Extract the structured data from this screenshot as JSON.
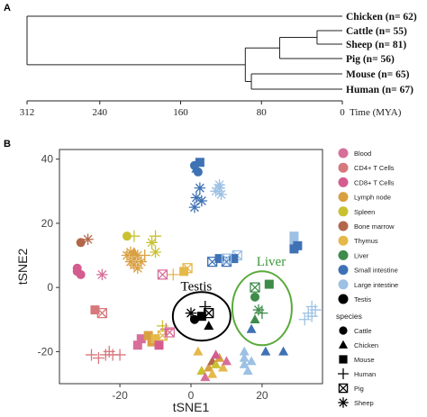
{
  "chart_data": [
    {
      "type": "dendrogram",
      "panel_label": "A",
      "leaves": [
        {
          "name": "Chicken (n= 62)",
          "divergence_mya": 312
        },
        {
          "name": "Cattle (n= 55)",
          "divergence_mya": 25
        },
        {
          "name": "Sheep (n= 81)",
          "divergence_mya": 25
        },
        {
          "name": "Pig (n= 56)",
          "divergence_mya": 62
        },
        {
          "name": "Mouse (n= 65)",
          "divergence_mya": 90
        },
        {
          "name": "Human (n= 67)",
          "divergence_mya": 90
        }
      ],
      "merges": [
        {
          "children": [
            "Cattle",
            "Sheep"
          ],
          "mya": 25
        },
        {
          "children": [
            "Cattle+Sheep",
            "Pig"
          ],
          "mya": 62
        },
        {
          "children": [
            "Mouse",
            "Human"
          ],
          "mya": 90
        },
        {
          "children": [
            "Cattle+Sheep+Pig",
            "Mouse+Human"
          ],
          "mya": 96
        },
        {
          "children": [
            "Chicken",
            "Mammals"
          ],
          "mya": 312
        }
      ],
      "x_ticks": [
        "312",
        "240",
        "160",
        "80",
        "0"
      ],
      "x_tick_values": [
        312,
        240,
        160,
        80,
        0
      ],
      "xlabel": "Time (MYA)"
    },
    {
      "type": "scatter",
      "panel_label": "B",
      "xlabel": "tSNE1",
      "ylabel": "tSNE2",
      "xlim": [
        -37,
        37
      ],
      "ylim": [
        -30,
        43
      ],
      "x_ticks": [
        "-20",
        "0",
        "20"
      ],
      "x_tick_values": [
        -20,
        0,
        20
      ],
      "y_ticks": [
        "40",
        "20",
        "0",
        "-20"
      ],
      "y_tick_values": [
        40,
        20,
        0,
        -20
      ],
      "annotations": [
        {
          "text": "Testis",
          "x": 2,
          "y": -8,
          "color": "#000000"
        },
        {
          "text": "Liver",
          "x": 19,
          "y": -5,
          "color": "#3a9a3a"
        }
      ],
      "tissue_legend": [
        {
          "label": "Blood",
          "color": "#d86f9a"
        },
        {
          "label": "CD4+ T Cells",
          "color": "#d6787c"
        },
        {
          "label": "CD8+ T Cells",
          "color": "#d55c8f"
        },
        {
          "label": "Lymph node",
          "color": "#d9a042"
        },
        {
          "label": "Spleen",
          "color": "#c9c131"
        },
        {
          "label": "Bone marrow",
          "color": "#b2674a"
        },
        {
          "label": "Thymus",
          "color": "#e5b84a"
        },
        {
          "label": "Liver",
          "color": "#3e8b4a"
        },
        {
          "label": "Small intestine",
          "color": "#3f72b5"
        },
        {
          "label": "Large intestine",
          "color": "#9dc1e4"
        },
        {
          "label": "Testis",
          "color": "#000000"
        }
      ],
      "species_title": "species",
      "species_legend": [
        {
          "label": "Cattle",
          "shape": "circle"
        },
        {
          "label": "Chicken",
          "shape": "triangle"
        },
        {
          "label": "Mouse",
          "shape": "square"
        },
        {
          "label": "Human",
          "shape": "plus"
        },
        {
          "label": "Pig",
          "shape": "boxx"
        },
        {
          "label": "Sheep",
          "shape": "asterisk"
        }
      ],
      "points": [
        {
          "x": 1,
          "y": 38,
          "tissue": "Small intestine",
          "species": "Cattle"
        },
        {
          "x": 2,
          "y": 36,
          "tissue": "Small intestine",
          "species": "Cattle"
        },
        {
          "x": 2.5,
          "y": 39,
          "tissue": "Small intestine",
          "species": "Mouse"
        },
        {
          "x": 1.5,
          "y": 37,
          "tissue": "Small intestine",
          "species": "Chicken"
        },
        {
          "x": 1.5,
          "y": 28,
          "tissue": "Small intestine",
          "species": "Sheep"
        },
        {
          "x": 2.5,
          "y": 31,
          "tissue": "Small intestine",
          "species": "Sheep"
        },
        {
          "x": 1,
          "y": 25,
          "tissue": "Small intestine",
          "species": "Sheep"
        },
        {
          "x": 3,
          "y": 27,
          "tissue": "Small intestine",
          "species": "Sheep"
        },
        {
          "x": 7,
          "y": 30,
          "tissue": "Large intestine",
          "species": "Sheep"
        },
        {
          "x": 8,
          "y": 31,
          "tissue": "Large intestine",
          "species": "Sheep"
        },
        {
          "x": 8.5,
          "y": 29,
          "tissue": "Large intestine",
          "species": "Sheep"
        },
        {
          "x": 8,
          "y": 32,
          "tissue": "Large intestine",
          "species": "Sheep"
        },
        {
          "x": -18,
          "y": 16,
          "tissue": "Spleen",
          "species": "Cattle"
        },
        {
          "x": -16,
          "y": 16,
          "tissue": "Spleen",
          "species": "Human"
        },
        {
          "x": -10,
          "y": 16,
          "tissue": "Spleen",
          "species": "Human"
        },
        {
          "x": -11,
          "y": 14,
          "tissue": "Spleen",
          "species": "Sheep"
        },
        {
          "x": -10,
          "y": 11,
          "tissue": "Spleen",
          "species": "Sheep"
        },
        {
          "x": -18,
          "y": 10,
          "tissue": "Lymph node",
          "species": "Sheep"
        },
        {
          "x": -17,
          "y": 11,
          "tissue": "Lymph node",
          "species": "Sheep"
        },
        {
          "x": -16,
          "y": 9,
          "tissue": "Lymph node",
          "species": "Sheep"
        },
        {
          "x": -15,
          "y": 10,
          "tissue": "Lymph node",
          "species": "Sheep"
        },
        {
          "x": -14,
          "y": 8,
          "tissue": "Lymph node",
          "species": "Sheep"
        },
        {
          "x": -16,
          "y": 7,
          "tissue": "Lymph node",
          "species": "Sheep"
        },
        {
          "x": -15,
          "y": 6,
          "tissue": "Lymph node",
          "species": "Sheep"
        },
        {
          "x": -17,
          "y": 8,
          "tissue": "Lymph node",
          "species": "Sheep"
        },
        {
          "x": -16,
          "y": 11,
          "tissue": "Lymph node",
          "species": "Chicken"
        },
        {
          "x": -13,
          "y": 10,
          "tissue": "Lymph node",
          "species": "Human"
        },
        {
          "x": -31,
          "y": 14,
          "tissue": "Bone marrow",
          "species": "Cattle"
        },
        {
          "x": -29,
          "y": 15,
          "tissue": "Bone marrow",
          "species": "Sheep"
        },
        {
          "x": -32,
          "y": 5,
          "tissue": "CD8+ T Cells",
          "species": "Cattle"
        },
        {
          "x": -31,
          "y": 4,
          "tissue": "CD8+ T Cells",
          "species": "Cattle"
        },
        {
          "x": -32,
          "y": 6,
          "tissue": "CD8+ T Cells",
          "species": "Cattle"
        },
        {
          "x": -25,
          "y": 4,
          "tissue": "Blood",
          "species": "Sheep"
        },
        {
          "x": -27,
          "y": -7,
          "tissue": "CD4+ T Cells",
          "species": "Mouse"
        },
        {
          "x": -25,
          "y": -8,
          "tissue": "CD4+ T Cells",
          "species": "Pig"
        },
        {
          "x": -5,
          "y": 4,
          "tissue": "Thymus",
          "species": "Human"
        },
        {
          "x": -2,
          "y": 5,
          "tissue": "Thymus",
          "species": "Mouse"
        },
        {
          "x": -1,
          "y": 6,
          "tissue": "Thymus",
          "species": "Pig"
        },
        {
          "x": -8,
          "y": 4,
          "tissue": "Blood",
          "species": "Pig"
        },
        {
          "x": 6,
          "y": 8,
          "tissue": "Small intestine",
          "species": "Pig"
        },
        {
          "x": 8,
          "y": 9,
          "tissue": "Small intestine",
          "species": "Mouse"
        },
        {
          "x": 10,
          "y": 8,
          "tissue": "Small intestine",
          "species": "Pig"
        },
        {
          "x": 13,
          "y": 10,
          "tissue": "Large intestine",
          "species": "Pig"
        },
        {
          "x": 12,
          "y": 9,
          "tissue": "Small intestine",
          "species": "Mouse"
        },
        {
          "x": 10,
          "y": 9,
          "tissue": "Large intestine",
          "species": "Pig"
        },
        {
          "x": 29,
          "y": 16,
          "tissue": "Large intestine",
          "species": "Mouse"
        },
        {
          "x": 29,
          "y": 14,
          "tissue": "Large intestine",
          "species": "Mouse"
        },
        {
          "x": 29,
          "y": 12,
          "tissue": "Small intestine",
          "species": "Mouse"
        },
        {
          "x": 30,
          "y": 13,
          "tissue": "Small intestine",
          "species": "Mouse"
        },
        {
          "x": 34,
          "y": -6,
          "tissue": "Large intestine",
          "species": "Human"
        },
        {
          "x": 35,
          "y": -7,
          "tissue": "Large intestine",
          "species": "Human"
        },
        {
          "x": 33,
          "y": -8,
          "tissue": "Large intestine",
          "species": "Human"
        },
        {
          "x": 34,
          "y": -9,
          "tissue": "Large intestine",
          "species": "Human"
        },
        {
          "x": 32,
          "y": -10,
          "tissue": "Large intestine",
          "species": "Human"
        },
        {
          "x": 18,
          "y": -3,
          "tissue": "Liver",
          "species": "Cattle"
        },
        {
          "x": 22,
          "y": 1,
          "tissue": "Liver",
          "species": "Mouse"
        },
        {
          "x": 18,
          "y": 0,
          "tissue": "Liver",
          "species": "Pig"
        },
        {
          "x": 18,
          "y": -10,
          "tissue": "Liver",
          "species": "Chicken"
        },
        {
          "x": 20,
          "y": -8,
          "tissue": "Liver",
          "species": "Human"
        },
        {
          "x": 19,
          "y": -7,
          "tissue": "Liver",
          "species": "Sheep"
        },
        {
          "x": 17,
          "y": -13,
          "tissue": "Small intestine",
          "species": "Chicken"
        },
        {
          "x": 15,
          "y": -20,
          "tissue": "Large intestine",
          "species": "Chicken"
        },
        {
          "x": 15,
          "y": -22,
          "tissue": "Large intestine",
          "species": "Chicken"
        },
        {
          "x": 15,
          "y": -24,
          "tissue": "Large intestine",
          "species": "Chicken"
        },
        {
          "x": 16,
          "y": -26,
          "tissue": "Large intestine",
          "species": "Chicken"
        },
        {
          "x": 17,
          "y": -23,
          "tissue": "Large intestine",
          "species": "Chicken"
        },
        {
          "x": 21,
          "y": -20,
          "tissue": "Small intestine",
          "species": "Chicken"
        },
        {
          "x": 26,
          "y": -20,
          "tissue": "Small intestine",
          "species": "Chicken"
        },
        {
          "x": 0,
          "y": -8,
          "tissue": "Testis",
          "species": "Sheep"
        },
        {
          "x": 1,
          "y": -10,
          "tissue": "Testis",
          "species": "Cattle"
        },
        {
          "x": 3,
          "y": -9,
          "tissue": "Testis",
          "species": "Mouse"
        },
        {
          "x": 5,
          "y": -8,
          "tissue": "Testis",
          "species": "Pig"
        },
        {
          "x": 5,
          "y": -12,
          "tissue": "Testis",
          "species": "Chicken"
        },
        {
          "x": 4,
          "y": -6,
          "tissue": "Testis",
          "species": "Human"
        },
        {
          "x": -28,
          "y": -21,
          "tissue": "CD4+ T Cells",
          "species": "Human"
        },
        {
          "x": -26,
          "y": -22,
          "tissue": "CD4+ T Cells",
          "species": "Human"
        },
        {
          "x": -24,
          "y": -21,
          "tissue": "CD4+ T Cells",
          "species": "Human"
        },
        {
          "x": -22,
          "y": -21,
          "tissue": "CD4+ T Cells",
          "species": "Human"
        },
        {
          "x": -20,
          "y": -21,
          "tissue": "CD4+ T Cells",
          "species": "Human"
        },
        {
          "x": -23,
          "y": -20,
          "tissue": "CD4+ T Cells",
          "species": "Human"
        },
        {
          "x": -15,
          "y": -18,
          "tissue": "Blood",
          "species": "Mouse"
        },
        {
          "x": -14,
          "y": -16,
          "tissue": "Blood",
          "species": "Mouse"
        },
        {
          "x": -12,
          "y": -15,
          "tissue": "Lymph node",
          "species": "Mouse"
        },
        {
          "x": -11,
          "y": -17,
          "tissue": "Lymph node",
          "species": "Mouse"
        },
        {
          "x": -10,
          "y": -16,
          "tissue": "Thymus",
          "species": "Mouse"
        },
        {
          "x": -9,
          "y": -18,
          "tissue": "CD8+ T Cells",
          "species": "Mouse"
        },
        {
          "x": -8,
          "y": -15,
          "tissue": "Thymus",
          "species": "Pig"
        },
        {
          "x": -7,
          "y": -13,
          "tissue": "CD8+ T Cells",
          "species": "Human"
        },
        {
          "x": -6,
          "y": -14,
          "tissue": "Blood",
          "species": "Pig"
        },
        {
          "x": -8,
          "y": -12,
          "tissue": "Spleen",
          "species": "Human"
        },
        {
          "x": 2,
          "y": -20,
          "tissue": "Thymus",
          "species": "Chicken"
        },
        {
          "x": 3,
          "y": -26,
          "tissue": "Spleen",
          "species": "Chicken"
        },
        {
          "x": 4,
          "y": -28,
          "tissue": "Blood",
          "species": "Chicken"
        },
        {
          "x": 5,
          "y": -25,
          "tissue": "Lymph node",
          "species": "Chicken"
        },
        {
          "x": 6,
          "y": -23,
          "tissue": "Bone marrow",
          "species": "Chicken"
        },
        {
          "x": 6,
          "y": -27,
          "tissue": "Thymus",
          "species": "Chicken"
        },
        {
          "x": 7,
          "y": -24,
          "tissue": "Spleen",
          "species": "Chicken"
        },
        {
          "x": 8,
          "y": -22,
          "tissue": "Lymph node",
          "species": "Chicken"
        },
        {
          "x": 9,
          "y": -25,
          "tissue": "Thymus",
          "species": "Chicken"
        },
        {
          "x": 10,
          "y": -23,
          "tissue": "Blood",
          "species": "Chicken"
        },
        {
          "x": 7,
          "y": -21,
          "tissue": "CD8+ T Cells",
          "species": "Chicken"
        }
      ]
    }
  ]
}
